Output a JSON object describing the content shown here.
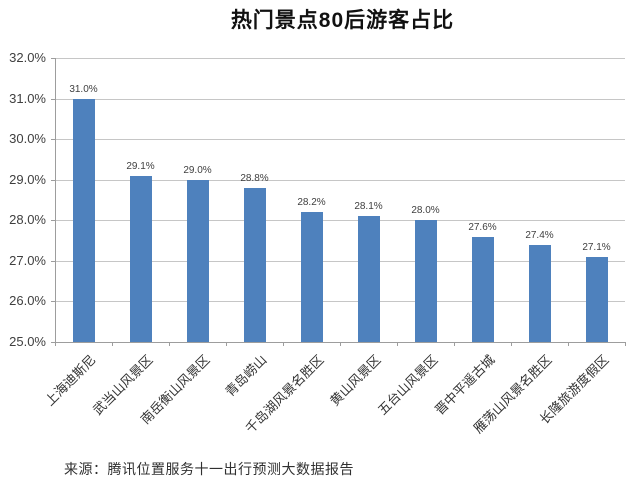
{
  "title": "热门景点80后游客占比",
  "source": "来源：腾讯位置服务十一出行预测大数据报告",
  "colors": {
    "background": "#ffffff",
    "bar": "#4e81bd",
    "grid": "#c6c6c6",
    "axis": "#9d9d9d",
    "title_text": "#111111",
    "label_text": "#3f3f3f",
    "xlabel_text": "#333333",
    "source_text": "#303030"
  },
  "chart_data": {
    "type": "bar",
    "title": "热门景点80后游客占比",
    "categories": [
      "上海迪斯尼",
      "武当山风景区",
      "南岳衡山风景区",
      "青岛崂山",
      "千岛湖风景名胜区",
      "黄山风景区",
      "五台山风景区",
      "晋中平遥古城",
      "雁荡山风景名胜区",
      "长隆旅游度假区"
    ],
    "values": [
      31.0,
      29.1,
      29.0,
      28.8,
      28.2,
      28.1,
      28.0,
      27.6,
      27.4,
      27.1
    ],
    "value_labels": [
      "31.0%",
      "29.1%",
      "29.0%",
      "28.8%",
      "28.2%",
      "28.1%",
      "28.0%",
      "27.6%",
      "27.4%",
      "27.1%"
    ],
    "xlabel": "",
    "ylabel": "",
    "ylim": [
      25.0,
      32.0
    ],
    "ytick_step": 1.0,
    "ytick_labels": [
      "25.0%",
      "26.0%",
      "27.0%",
      "28.0%",
      "29.0%",
      "30.0%",
      "31.0%",
      "32.0%"
    ],
    "grid": true,
    "legend": false,
    "bar_label_position": "above",
    "x_label_rotation_deg": -45
  }
}
